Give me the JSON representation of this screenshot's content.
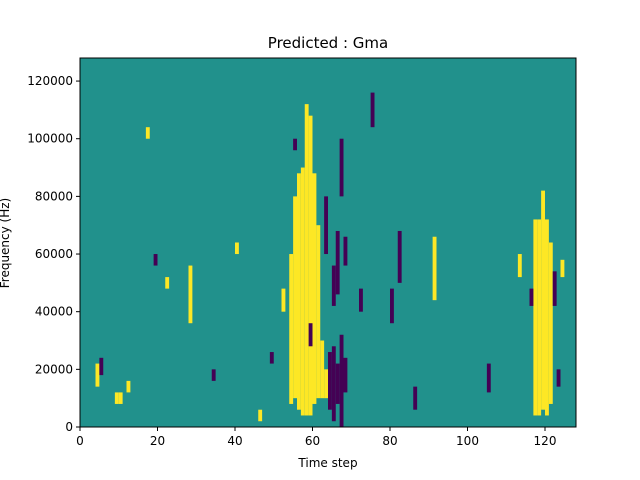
{
  "chart_data": {
    "type": "heatmap",
    "title": "Predicted : Gma",
    "xlabel": "Time step",
    "ylabel": "Frequency (Hz)",
    "xlim": [
      0,
      128
    ],
    "ylim": [
      0,
      128000
    ],
    "x_ticks": [
      0,
      20,
      40,
      60,
      80,
      100,
      120
    ],
    "x_tick_labels": [
      "0",
      "20",
      "40",
      "60",
      "80",
      "100",
      "120"
    ],
    "y_ticks": [
      0,
      20000,
      40000,
      60000,
      80000,
      100000,
      120000
    ],
    "y_tick_labels": [
      "0",
      "20000",
      "40000",
      "60000",
      "80000",
      "100000",
      "120000"
    ],
    "grid": false,
    "colormap": "viridis",
    "colors": {
      "background": "#21918c",
      "high": "#fde725",
      "low": "#440154"
    },
    "background_value": 0,
    "high_cells": [
      {
        "x": 4,
        "y0": 14000,
        "y1": 22000
      },
      {
        "x": 9,
        "y0": 8000,
        "y1": 12000
      },
      {
        "x": 10,
        "y0": 8000,
        "y1": 12000
      },
      {
        "x": 12,
        "y0": 12000,
        "y1": 16000
      },
      {
        "x": 17,
        "y0": 100000,
        "y1": 104000
      },
      {
        "x": 22,
        "y0": 48000,
        "y1": 52000
      },
      {
        "x": 28,
        "y0": 36000,
        "y1": 56000
      },
      {
        "x": 40,
        "y0": 60000,
        "y1": 64000
      },
      {
        "x": 46,
        "y0": 2000,
        "y1": 6000
      },
      {
        "x": 52,
        "y0": 40000,
        "y1": 48000
      },
      {
        "x": 54,
        "y0": 8000,
        "y1": 60000
      },
      {
        "x": 55,
        "y0": 10000,
        "y1": 80000
      },
      {
        "x": 56,
        "y0": 6000,
        "y1": 88000
      },
      {
        "x": 57,
        "y0": 4000,
        "y1": 90000
      },
      {
        "x": 58,
        "y0": 4000,
        "y1": 112000
      },
      {
        "x": 59,
        "y0": 4000,
        "y1": 108000
      },
      {
        "x": 60,
        "y0": 8000,
        "y1": 88000
      },
      {
        "x": 61,
        "y0": 10000,
        "y1": 70000
      },
      {
        "x": 62,
        "y0": 10000,
        "y1": 30000
      },
      {
        "x": 63,
        "y0": 10000,
        "y1": 20000
      },
      {
        "x": 91,
        "y0": 44000,
        "y1": 66000
      },
      {
        "x": 113,
        "y0": 52000,
        "y1": 60000
      },
      {
        "x": 117,
        "y0": 4000,
        "y1": 72000
      },
      {
        "x": 118,
        "y0": 4000,
        "y1": 72000
      },
      {
        "x": 119,
        "y0": 6000,
        "y1": 82000
      },
      {
        "x": 120,
        "y0": 4000,
        "y1": 72000
      },
      {
        "x": 121,
        "y0": 8000,
        "y1": 64000
      },
      {
        "x": 124,
        "y0": 52000,
        "y1": 58000
      }
    ],
    "low_cells": [
      {
        "x": 5,
        "y0": 18000,
        "y1": 24000
      },
      {
        "x": 19,
        "y0": 56000,
        "y1": 60000
      },
      {
        "x": 34,
        "y0": 16000,
        "y1": 20000
      },
      {
        "x": 49,
        "y0": 22000,
        "y1": 26000
      },
      {
        "x": 55,
        "y0": 96000,
        "y1": 100000
      },
      {
        "x": 59,
        "y0": 28000,
        "y1": 36000
      },
      {
        "x": 63,
        "y0": 60000,
        "y1": 80000
      },
      {
        "x": 64,
        "y0": 6000,
        "y1": 26000
      },
      {
        "x": 65,
        "y0": 2000,
        "y1": 28000
      },
      {
        "x": 65,
        "y0": 42000,
        "y1": 56000
      },
      {
        "x": 66,
        "y0": 8000,
        "y1": 22000
      },
      {
        "x": 66,
        "y0": 46000,
        "y1": 68000
      },
      {
        "x": 67,
        "y0": 0,
        "y1": 32000
      },
      {
        "x": 67,
        "y0": 80000,
        "y1": 100000
      },
      {
        "x": 68,
        "y0": 12000,
        "y1": 24000
      },
      {
        "x": 68,
        "y0": 56000,
        "y1": 66000
      },
      {
        "x": 72,
        "y0": 40000,
        "y1": 48000
      },
      {
        "x": 75,
        "y0": 104000,
        "y1": 116000
      },
      {
        "x": 80,
        "y0": 36000,
        "y1": 48000
      },
      {
        "x": 82,
        "y0": 50000,
        "y1": 68000
      },
      {
        "x": 86,
        "y0": 6000,
        "y1": 14000
      },
      {
        "x": 105,
        "y0": 12000,
        "y1": 22000
      },
      {
        "x": 116,
        "y0": 42000,
        "y1": 48000
      },
      {
        "x": 122,
        "y0": 42000,
        "y1": 54000
      },
      {
        "x": 123,
        "y0": 14000,
        "y1": 20000
      }
    ]
  }
}
